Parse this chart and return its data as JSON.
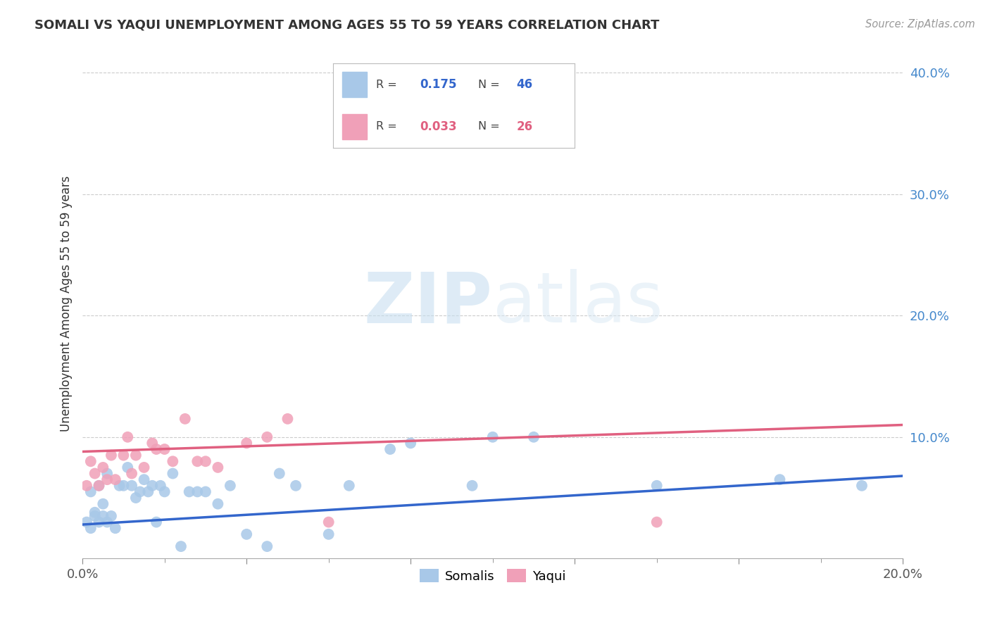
{
  "title": "SOMALI VS YAQUI UNEMPLOYMENT AMONG AGES 55 TO 59 YEARS CORRELATION CHART",
  "source": "Source: ZipAtlas.com",
  "ylabel": "Unemployment Among Ages 55 to 59 years",
  "xlim": [
    0.0,
    0.2
  ],
  "ylim": [
    0.0,
    0.42
  ],
  "xticks": [
    0.0,
    0.04,
    0.08,
    0.12,
    0.16,
    0.2
  ],
  "yticks": [
    0.0,
    0.1,
    0.2,
    0.3,
    0.4
  ],
  "xticklabels_left": [
    "0.0%",
    "",
    "",
    "",
    "",
    ""
  ],
  "xticklabels_right": [
    "",
    "",
    "",
    "",
    "",
    "20.0%"
  ],
  "yticklabels": [
    "",
    "10.0%",
    "20.0%",
    "30.0%",
    "40.0%"
  ],
  "grid_color": "#cccccc",
  "background_color": "#ffffff",
  "somali_color": "#a8c8e8",
  "yaqui_color": "#f0a0b8",
  "somali_line_color": "#3366cc",
  "yaqui_line_color": "#e06080",
  "somali_R": 0.175,
  "somali_N": 46,
  "yaqui_R": 0.033,
  "yaqui_N": 26,
  "somali_x": [
    0.001,
    0.002,
    0.002,
    0.003,
    0.003,
    0.004,
    0.004,
    0.005,
    0.005,
    0.006,
    0.006,
    0.007,
    0.008,
    0.009,
    0.01,
    0.011,
    0.012,
    0.013,
    0.014,
    0.015,
    0.016,
    0.017,
    0.018,
    0.019,
    0.02,
    0.022,
    0.024,
    0.026,
    0.028,
    0.03,
    0.033,
    0.036,
    0.04,
    0.045,
    0.048,
    0.052,
    0.06,
    0.065,
    0.075,
    0.08,
    0.095,
    0.1,
    0.11,
    0.14,
    0.17,
    0.19
  ],
  "somali_y": [
    0.03,
    0.025,
    0.055,
    0.035,
    0.038,
    0.03,
    0.06,
    0.035,
    0.045,
    0.03,
    0.07,
    0.035,
    0.025,
    0.06,
    0.06,
    0.075,
    0.06,
    0.05,
    0.055,
    0.065,
    0.055,
    0.06,
    0.03,
    0.06,
    0.055,
    0.07,
    0.01,
    0.055,
    0.055,
    0.055,
    0.045,
    0.06,
    0.02,
    0.01,
    0.07,
    0.06,
    0.02,
    0.06,
    0.09,
    0.095,
    0.06,
    0.1,
    0.1,
    0.06,
    0.065,
    0.06
  ],
  "yaqui_x": [
    0.001,
    0.002,
    0.003,
    0.004,
    0.005,
    0.006,
    0.007,
    0.008,
    0.01,
    0.011,
    0.012,
    0.013,
    0.015,
    0.017,
    0.018,
    0.02,
    0.022,
    0.025,
    0.028,
    0.03,
    0.033,
    0.04,
    0.045,
    0.05,
    0.06,
    0.14
  ],
  "yaqui_y": [
    0.06,
    0.08,
    0.07,
    0.06,
    0.075,
    0.065,
    0.085,
    0.065,
    0.085,
    0.1,
    0.07,
    0.085,
    0.075,
    0.095,
    0.09,
    0.09,
    0.08,
    0.115,
    0.08,
    0.08,
    0.075,
    0.095,
    0.1,
    0.115,
    0.03,
    0.03
  ],
  "somali_line_x0": 0.0,
  "somali_line_y0": 0.028,
  "somali_line_x1": 0.2,
  "somali_line_y1": 0.068,
  "yaqui_line_x0": 0.0,
  "yaqui_line_y0": 0.088,
  "yaqui_line_x1": 0.2,
  "yaqui_line_y1": 0.11
}
